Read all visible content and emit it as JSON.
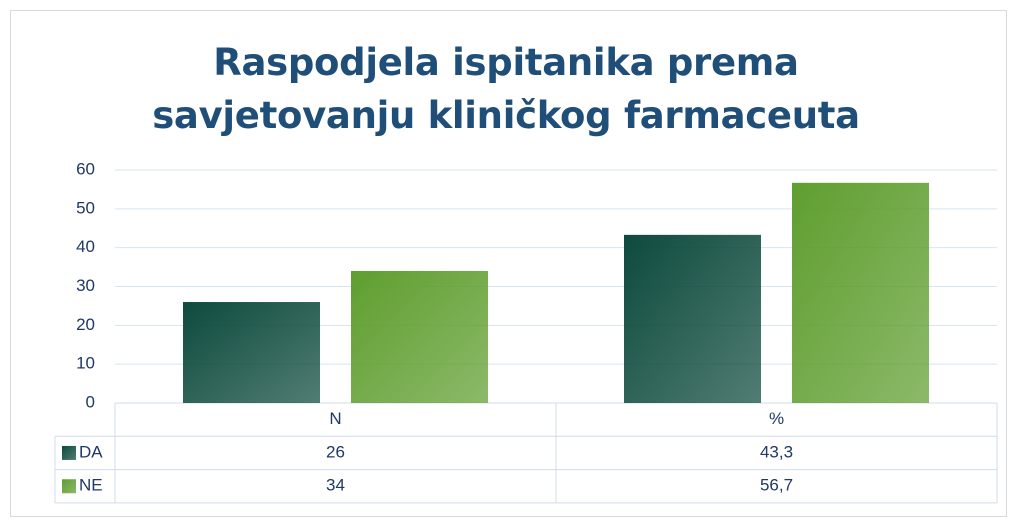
{
  "chart_data": {
    "type": "bar",
    "title": "Raspodjela ispitanika prema savjetovanju kliničkog farmaceuta",
    "categories": [
      "N",
      "%"
    ],
    "series": [
      {
        "name": "DA",
        "color": "#0d4a3d",
        "values": [
          26,
          43.3
        ],
        "value_labels": [
          "26",
          "43,3"
        ]
      },
      {
        "name": "NE",
        "color": "#5f9e2f",
        "values": [
          34,
          56.7
        ],
        "value_labels": [
          "34",
          "56,7"
        ]
      }
    ],
    "ylim": [
      0,
      60
    ],
    "yticks": [
      0,
      10,
      20,
      30,
      40,
      50,
      60
    ],
    "grid": true
  }
}
